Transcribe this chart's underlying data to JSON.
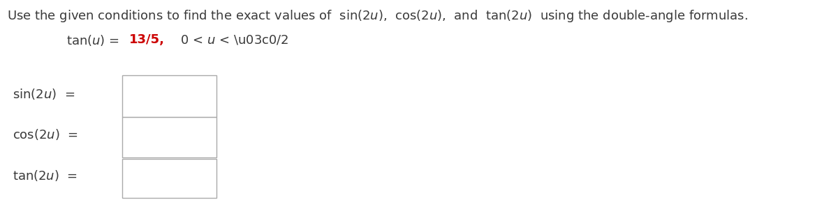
{
  "title_text_parts": [
    {
      "text": "Use the given conditions to find the exact values of  sin(2",
      "style": "normal"
    },
    {
      "text": "u",
      "style": "italic"
    },
    {
      "text": "),  cos(2",
      "style": "normal"
    },
    {
      "text": "u",
      "style": "italic"
    },
    {
      "text": "),  and  tan(2",
      "style": "normal"
    },
    {
      "text": "u",
      "style": "italic"
    },
    {
      "text": ")  using the double-angle formulas.",
      "style": "normal"
    }
  ],
  "bg_color": "#ffffff",
  "text_color": "#3a3a3a",
  "red_color": "#cc0000",
  "box_edge_color": "#aaaaaa",
  "title_fontsize": 13.0,
  "label_fontsize": 13.0,
  "condition_fontsize": 13.0,
  "fig_width": 12.0,
  "fig_height": 2.87,
  "dpi": 100
}
